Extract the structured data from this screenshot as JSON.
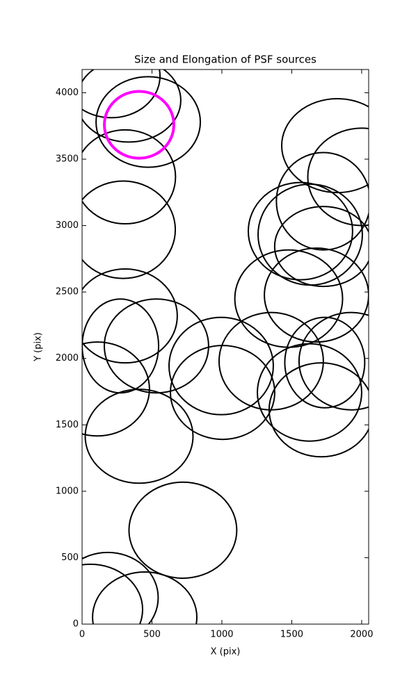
{
  "chart_data": {
    "type": "ellipse",
    "title": "Size and Elongation of PSF sources",
    "x_label": "X (pix)",
    "y_label": "Y (pix)",
    "xlim": [
      0,
      2050
    ],
    "ylim": [
      0,
      4175
    ],
    "xticks": [
      0,
      500,
      1000,
      1500,
      2000
    ],
    "yticks": [
      0,
      500,
      1000,
      1500,
      2000,
      2500,
      3000,
      3500,
      4000
    ],
    "series": [
      {
        "color": "#000000",
        "x": [
          333,
          473,
          308,
          294,
          209,
          1826,
          2000,
          1726,
          1562,
          1632,
          1726,
          1478,
          1677,
          308,
          274,
          532,
          995,
          1005,
          1353,
          1627,
          1736,
          1925,
          1711,
          109,
          408,
          721,
          184,
          60,
          448
        ],
        "y": [
          3943,
          3780,
          3367,
          2969,
          4126,
          3602,
          3367,
          3183,
          2958,
          2932,
          2843,
          2450,
          2477,
          2320,
          2094,
          2094,
          1943,
          1744,
          1979,
          1744,
          1969,
          1979,
          1613,
          1770,
          1414,
          707,
          199,
          110,
          52
        ],
        "width": [
          746,
          746,
          721,
          746,
          697,
          796,
          771,
          672,
          746,
          746,
          697,
          771,
          746,
          746,
          547,
          746,
          746,
          746,
          746,
          746,
          572,
          746,
          746,
          746,
          771,
          771,
          721,
          746,
          746
        ],
        "height": [
          628,
          681,
          707,
          733,
          628,
          707,
          733,
          733,
          733,
          759,
          602,
          733,
          707,
          707,
          707,
          707,
          733,
          707,
          733,
          733,
          681,
          733,
          707,
          707,
          707,
          723,
          681,
          681,
          681
        ]
      },
      {
        "color": "#ff00ff",
        "x": [
          408
        ],
        "y": [
          3759
        ],
        "width": [
          497
        ],
        "height": [
          503
        ]
      }
    ]
  }
}
